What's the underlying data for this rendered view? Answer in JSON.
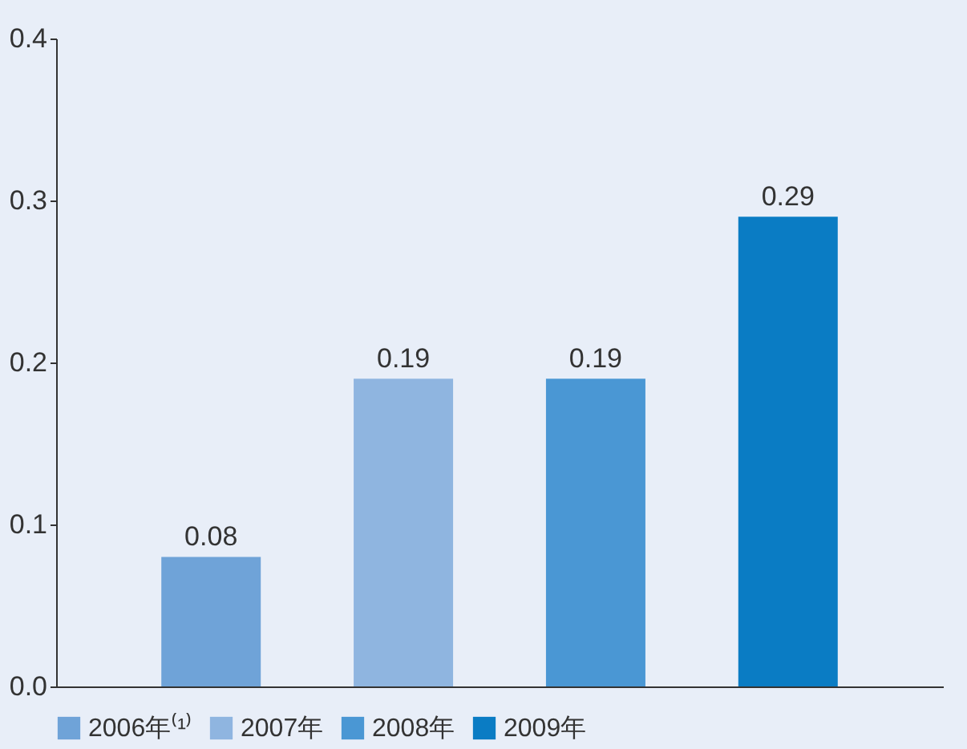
{
  "chart_data": {
    "type": "bar",
    "categories": [
      null
    ],
    "series": [
      {
        "name": "2006年⁽¹⁾",
        "color": "#6fa3d8",
        "values": [
          0.08
        ]
      },
      {
        "name": "2007年",
        "color": "#8fb5e0",
        "values": [
          0.19
        ]
      },
      {
        "name": "2008年",
        "color": "#4a97d4",
        "values": [
          0.19
        ]
      },
      {
        "name": "2009年",
        "color": "#0a7cc4",
        "values": [
          0.29
        ]
      }
    ],
    "ylim": [
      0,
      0.4
    ],
    "yticks": [
      {
        "value": 0,
        "label": "0.0"
      },
      0.1,
      0.2,
      0.3,
      0.4
    ],
    "data_labels": true,
    "grid": false,
    "legend": "bottom",
    "tick_labels": "y"
  }
}
